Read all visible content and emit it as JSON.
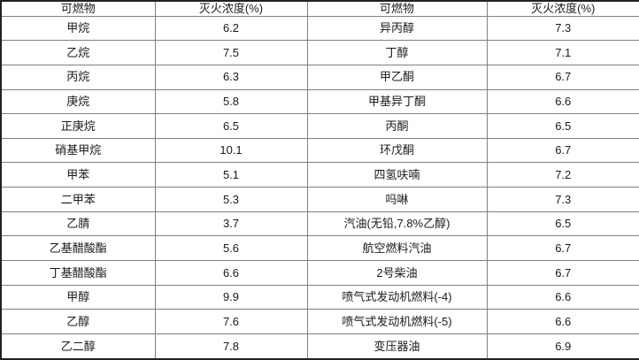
{
  "table": {
    "title": "extinguishing-concentration-table",
    "headers": [
      "可燃物",
      "灭火浓度(%)",
      "可燃物",
      "灭火浓度(%)"
    ],
    "rows": [
      [
        "甲烷",
        "6.2",
        "异丙醇",
        "7.3"
      ],
      [
        "乙烷",
        "7.5",
        "丁醇",
        "7.1"
      ],
      [
        "丙烷",
        "6.3",
        "甲乙酮",
        "6.7"
      ],
      [
        "庚烷",
        "5.8",
        "甲基异丁酮",
        "6.6"
      ],
      [
        "正庚烷",
        "6.5",
        "丙酮",
        "6.5"
      ],
      [
        "硝基甲烷",
        "10.1",
        "环戊酮",
        "6.7"
      ],
      [
        "甲苯",
        "5.1",
        "四氢呋喃",
        "7.2"
      ],
      [
        "二甲苯",
        "5.3",
        "吗啉",
        "7.3"
      ],
      [
        "乙腈",
        "3.7",
        "汽油(无铅,7.8%乙醇)",
        "6.5"
      ],
      [
        "乙基醋酸酯",
        "5.6",
        "航空燃料汽油",
        "6.7"
      ],
      [
        "丁基醋酸酯",
        "6.6",
        "2号柴油",
        "6.7"
      ],
      [
        "甲醇",
        "9.9",
        "喷气式发动机燃料(-4)",
        "6.6"
      ],
      [
        "乙醇",
        "7.6",
        "喷气式发动机燃料(-5)",
        "6.6"
      ],
      [
        "乙二醇",
        "7.8",
        "变压器油",
        "6.9"
      ]
    ],
    "colors": {
      "border_outer": "#222222",
      "border_inner": "#808080",
      "text": "#1a1a1a",
      "background": "#ffffff"
    }
  }
}
